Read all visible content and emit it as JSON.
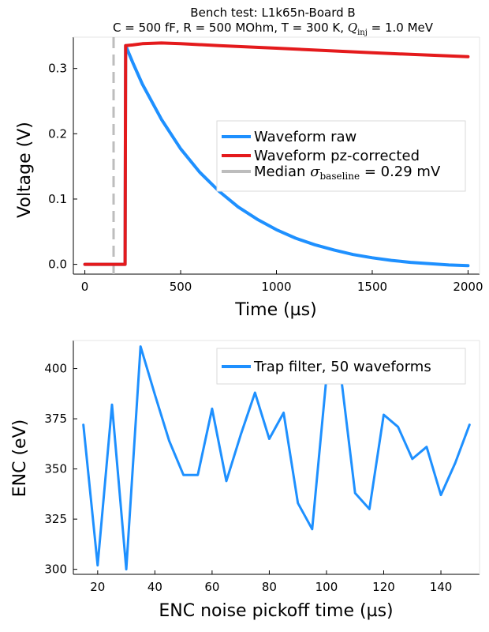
{
  "chart_data": [
    {
      "type": "line",
      "title": "Bench test: L1k65n-Board B",
      "subtitle_prefix": "C = 500 fF, R = 500 MOhm, T = 300 K, ",
      "subtitle_math": "Q",
      "subtitle_math_sub": "inj",
      "subtitle_suffix": " = 1.0 MeV",
      "xlabel": "Time (µs)",
      "ylabel": "Voltage (V)",
      "xlim": [
        -60,
        2060
      ],
      "ylim": [
        -0.015,
        0.348
      ],
      "xticks": [
        0,
        500,
        1000,
        1500,
        2000
      ],
      "xtick_labels": [
        "0",
        "500",
        "1000",
        "1500",
        "2000"
      ],
      "yticks": [
        0.0,
        0.1,
        0.2,
        0.3
      ],
      "ytick_labels": [
        "0.0",
        "0.1",
        "0.2",
        "0.3"
      ],
      "grid": false,
      "legend_position": "right",
      "baseline_marker_x": 150,
      "series": [
        {
          "name": "Waveform raw",
          "color": "#1e90ff",
          "x": [
            0,
            50,
            100,
            150,
            210,
            213,
            250,
            300,
            400,
            500,
            600,
            700,
            800,
            900,
            1000,
            1100,
            1200,
            1300,
            1400,
            1500,
            1600,
            1700,
            1800,
            1900,
            2000
          ],
          "y": [
            0.0,
            0.0,
            0.0,
            0.0,
            0.0,
            0.335,
            0.309,
            0.276,
            0.222,
            0.177,
            0.141,
            0.112,
            0.088,
            0.069,
            0.053,
            0.04,
            0.03,
            0.022,
            0.015,
            0.01,
            0.006,
            0.003,
            0.001,
            -0.001,
            -0.002
          ]
        },
        {
          "name": "Waveform pz-corrected",
          "color": "#e41a1c",
          "x": [
            0,
            50,
            100,
            150,
            210,
            213,
            250,
            300,
            400,
            500,
            700,
            1000,
            1500,
            2000
          ],
          "y": [
            0.0,
            0.0,
            0.0,
            0.0,
            0.0,
            0.335,
            0.336,
            0.338,
            0.339,
            0.338,
            0.335,
            0.331,
            0.324,
            0.318
          ]
        },
        {
          "name_prefix": "Median ",
          "name_math": "σ",
          "name_math_sub": "baseline",
          "name_suffix": " = 0.29 mV",
          "color": "#bdbdbd",
          "style": "dashed"
        }
      ]
    },
    {
      "type": "line",
      "xlabel": "ENC noise pickoff time (µs)",
      "ylabel": "ENC (eV)",
      "xlim": [
        11.5,
        153.5
      ],
      "ylim": [
        297.5,
        414
      ],
      "xticks": [
        20,
        40,
        60,
        80,
        100,
        120,
        140
      ],
      "xtick_labels": [
        "20",
        "40",
        "60",
        "80",
        "100",
        "120",
        "140"
      ],
      "yticks": [
        300,
        325,
        350,
        375,
        400
      ],
      "ytick_labels": [
        "300",
        "325",
        "350",
        "375",
        "400"
      ],
      "grid": false,
      "legend_position": "top-right",
      "series": [
        {
          "name": "Trap filter, 50 waveforms",
          "color": "#1e90ff",
          "x": [
            15,
            20,
            25,
            30,
            35,
            40,
            45,
            50,
            55,
            60,
            65,
            70,
            75,
            80,
            85,
            90,
            95,
            100,
            105,
            110,
            115,
            120,
            125,
            130,
            135,
            140,
            145,
            150
          ],
          "y": [
            372,
            302,
            382,
            300,
            411,
            387,
            364,
            347,
            347,
            380,
            344,
            367,
            388,
            365,
            378,
            333,
            320,
            396,
            397,
            338,
            330,
            377,
            371,
            355,
            361,
            337,
            353,
            372
          ]
        }
      ]
    }
  ]
}
